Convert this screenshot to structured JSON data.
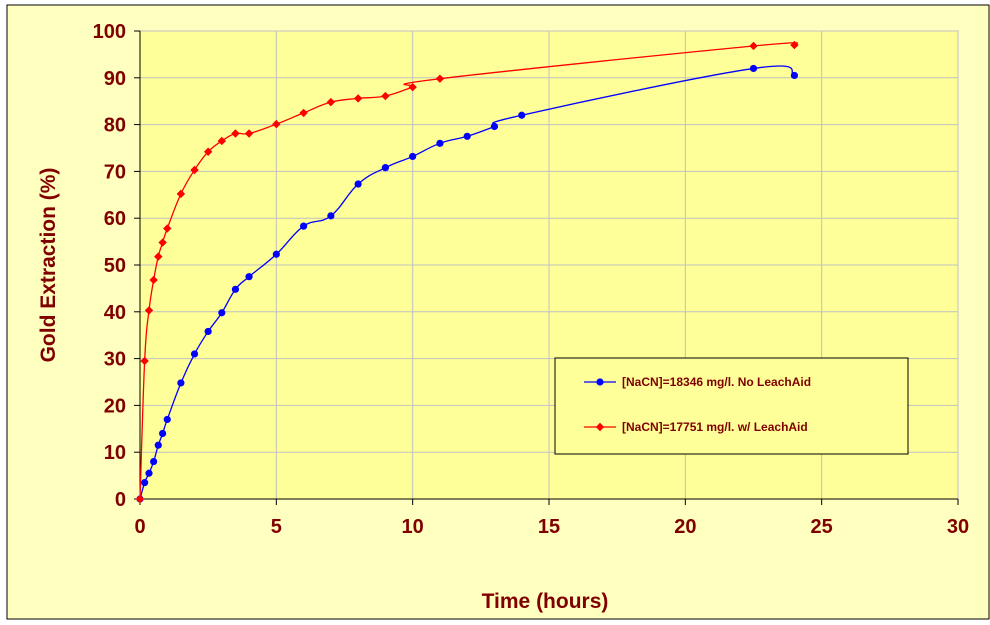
{
  "colors": {
    "chart_area_bg": "#FFFFC0",
    "plot_area_bg": "#FFFF99",
    "grid": "#C0C0C0",
    "text": "#800000",
    "series_blue": "#0000FF",
    "series_red": "#FF0000"
  },
  "chart_data": {
    "type": "line",
    "title": "",
    "xlabel": "Time (hours)",
    "ylabel": "Gold Extraction (%)",
    "xlim": [
      0,
      30
    ],
    "ylim": [
      0,
      100
    ],
    "x_ticks": [
      0,
      5,
      10,
      15,
      20,
      25,
      30
    ],
    "y_ticks": [
      0,
      10,
      20,
      30,
      40,
      50,
      60,
      70,
      80,
      90,
      100
    ],
    "grid": true,
    "legend_position": "lower-right",
    "series": [
      {
        "name": "[NaCN]=18346 mg/l. No LeachAid",
        "color": "#0000FF",
        "marker": "circle",
        "points": [
          [
            0,
            0
          ],
          [
            0.17,
            3.5
          ],
          [
            0.33,
            5.5
          ],
          [
            0.5,
            8
          ],
          [
            0.67,
            11.5
          ],
          [
            0.83,
            14
          ],
          [
            1,
            17
          ],
          [
            1.5,
            24.8
          ],
          [
            2,
            31
          ],
          [
            2.5,
            35.8
          ],
          [
            3,
            39.8
          ],
          [
            3.5,
            44.8
          ],
          [
            4,
            47.5
          ],
          [
            5,
            52.3
          ],
          [
            6,
            58.3
          ],
          [
            7,
            60.5
          ],
          [
            8,
            67.3
          ],
          [
            9,
            70.8
          ],
          [
            10,
            73.2
          ],
          [
            11,
            76
          ],
          [
            12,
            77.5
          ],
          [
            13,
            79.6
          ],
          [
            14,
            82
          ],
          [
            22.5,
            92
          ],
          [
            24,
            90.5
          ]
        ]
      },
      {
        "name": "[NaCN]=17751 mg/l. w/ LeachAid",
        "color": "#FF0000",
        "marker": "diamond",
        "points": [
          [
            0,
            0
          ],
          [
            0.17,
            29.5
          ],
          [
            0.33,
            40.3
          ],
          [
            0.5,
            46.8
          ],
          [
            0.67,
            51.8
          ],
          [
            0.83,
            54.8
          ],
          [
            1,
            57.8
          ],
          [
            1.5,
            65.2
          ],
          [
            2,
            70.3
          ],
          [
            2.5,
            74.2
          ],
          [
            3,
            76.5
          ],
          [
            3.5,
            78.1
          ],
          [
            4,
            78.1
          ],
          [
            5,
            80.1
          ],
          [
            6,
            82.5
          ],
          [
            7,
            84.8
          ],
          [
            8,
            85.6
          ],
          [
            9,
            86.1
          ],
          [
            10,
            88
          ],
          [
            11,
            89.8
          ],
          [
            22.5,
            96.8
          ],
          [
            24,
            97
          ]
        ]
      }
    ]
  }
}
